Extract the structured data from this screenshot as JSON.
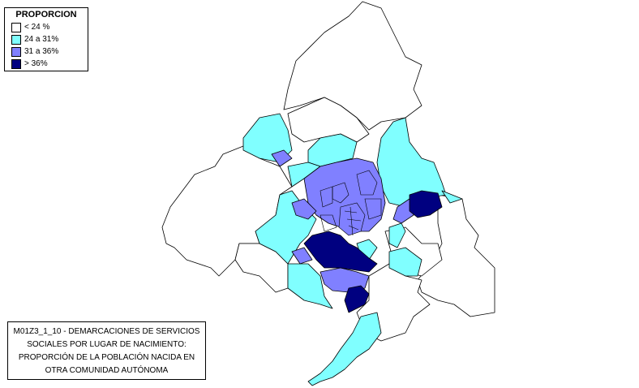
{
  "legend": {
    "title": "PROPORCION",
    "items": [
      {
        "label": "< 24 %",
        "color": "#ffffff"
      },
      {
        "label": "24 a 31%",
        "color": "#80ffff"
      },
      {
        "label": "31 a 36%",
        "color": "#8080ff"
      },
      {
        "label": "> 36%",
        "color": "#000080"
      }
    ]
  },
  "caption": {
    "lines": [
      "M01Z3_1_10 - DEMARCACIONES DE SERVICIOS",
      "SOCIALES POR LUGAR DE NACIMIENTO:",
      "PROPORCIÓN DE LA POBLACIÓN NACIDA EN",
      "OTRA COMUNIDAD AUTÓNOMA"
    ]
  },
  "map": {
    "region": "Comunidad de Madrid",
    "categories": {
      "low": "#ffffff",
      "mid": "#80ffff",
      "high": "#8080ff",
      "top": "#000080"
    }
  }
}
